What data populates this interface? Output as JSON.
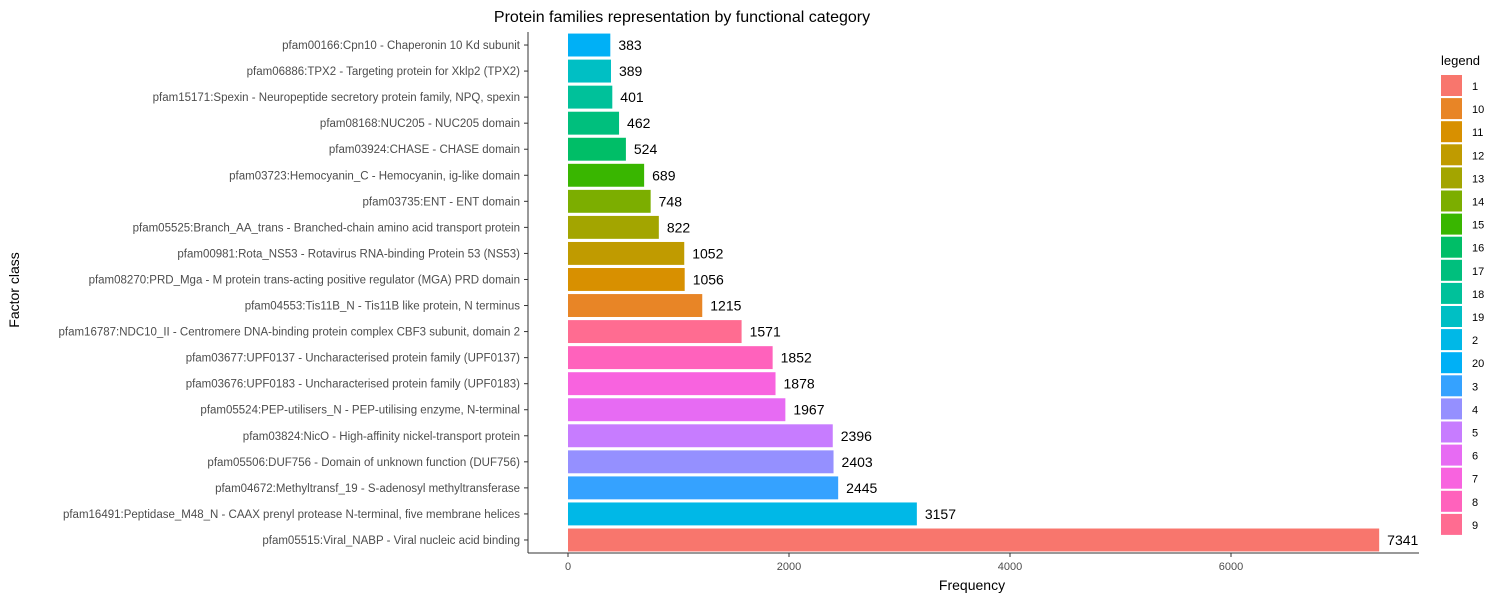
{
  "chart_data": {
    "type": "bar",
    "orientation": "horizontal",
    "title": "Protein families representation by functional category",
    "xlabel": "Frequency",
    "ylabel": "Factor class",
    "xlim": [
      0,
      7700
    ],
    "xticks": [
      0,
      2000,
      4000,
      6000
    ],
    "grid": false,
    "legend_position": "right",
    "legend_title": "legend",
    "bars": [
      {
        "label": "pfam00166:Cpn10 - Chaperonin 10 Kd subunit",
        "value": 383,
        "group": "20",
        "color": "#00B0F6"
      },
      {
        "label": "pfam06886:TPX2 - Targeting protein for Xklp2 (TPX2)",
        "value": 389,
        "group": "19",
        "color": "#00BFC4"
      },
      {
        "label": "pfam15171:Spexin - Neuropeptide secretory protein family, NPQ, spexin",
        "value": 401,
        "group": "18",
        "color": "#00C19A"
      },
      {
        "label": "pfam08168:NUC205 - NUC205 domain",
        "value": 462,
        "group": "17",
        "color": "#00BF7D"
      },
      {
        "label": "pfam03924:CHASE - CHASE domain",
        "value": 524,
        "group": "16",
        "color": "#00BE67"
      },
      {
        "label": "pfam03723:Hemocyanin_C - Hemocyanin, ig-like domain",
        "value": 689,
        "group": "15",
        "color": "#39B600"
      },
      {
        "label": "pfam03735:ENT - ENT domain",
        "value": 748,
        "group": "14",
        "color": "#7CAE00"
      },
      {
        "label": "pfam05525:Branch_AA_trans - Branched-chain amino acid transport protein",
        "value": 822,
        "group": "13",
        "color": "#A3A500"
      },
      {
        "label": "pfam00981:Rota_NS53 - Rotavirus RNA-binding Protein 53 (NS53)",
        "value": 1052,
        "group": "12",
        "color": "#C09B00"
      },
      {
        "label": "pfam08270:PRD_Mga - M protein trans-acting positive regulator (MGA) PRD domain",
        "value": 1056,
        "group": "11",
        "color": "#D89000"
      },
      {
        "label": "pfam04553:Tis11B_N - Tis11B like protein, N terminus",
        "value": 1215,
        "group": "10",
        "color": "#E88526"
      },
      {
        "label": "pfam16787:NDC10_II - Centromere DNA-binding protein complex CBF3 subunit, domain 2",
        "value": 1571,
        "group": "9",
        "color": "#FF6C91"
      },
      {
        "label": "pfam03677:UPF0137 - Uncharacterised protein family (UPF0137)",
        "value": 1852,
        "group": "8",
        "color": "#FF62BC"
      },
      {
        "label": "pfam03676:UPF0183 - Uncharacterised protein family (UPF0183)",
        "value": 1878,
        "group": "7",
        "color": "#F863DF"
      },
      {
        "label": "pfam05524:PEP-utilisers_N - PEP-utilising enzyme, N-terminal",
        "value": 1967,
        "group": "6",
        "color": "#E76BF3"
      },
      {
        "label": "pfam03824:NicO - High-affinity nickel-transport protein",
        "value": 2396,
        "group": "5",
        "color": "#C77CFF"
      },
      {
        "label": "pfam05506:DUF756 - Domain of unknown function (DUF756)",
        "value": 2403,
        "group": "4",
        "color": "#9590FF"
      },
      {
        "label": "pfam04672:Methyltransf_19 - S-adenosyl methyltransferase",
        "value": 2445,
        "group": "3",
        "color": "#35A2FF"
      },
      {
        "label": "pfam16491:Peptidase_M48_N - CAAX prenyl protease N-terminal, five membrane helices",
        "value": 3157,
        "group": "2",
        "color": "#00B8E7"
      },
      {
        "label": "pfam05515:Viral_NABP - Viral nucleic acid binding",
        "value": 7341,
        "group": "1",
        "color": "#F8766D"
      }
    ],
    "legend": [
      {
        "label": "1",
        "color": "#F8766D"
      },
      {
        "label": "10",
        "color": "#E88526"
      },
      {
        "label": "11",
        "color": "#D89000"
      },
      {
        "label": "12",
        "color": "#C09B00"
      },
      {
        "label": "13",
        "color": "#A3A500"
      },
      {
        "label": "14",
        "color": "#7CAE00"
      },
      {
        "label": "15",
        "color": "#39B600"
      },
      {
        "label": "16",
        "color": "#00BE67"
      },
      {
        "label": "17",
        "color": "#00BF7D"
      },
      {
        "label": "18",
        "color": "#00C19A"
      },
      {
        "label": "19",
        "color": "#00BFC4"
      },
      {
        "label": "2",
        "color": "#00B8E7"
      },
      {
        "label": "20",
        "color": "#00B0F6"
      },
      {
        "label": "3",
        "color": "#35A2FF"
      },
      {
        "label": "4",
        "color": "#9590FF"
      },
      {
        "label": "5",
        "color": "#C77CFF"
      },
      {
        "label": "6",
        "color": "#E76BF3"
      },
      {
        "label": "7",
        "color": "#F863DF"
      },
      {
        "label": "8",
        "color": "#FF62BC"
      },
      {
        "label": "9",
        "color": "#FF6C91"
      }
    ]
  }
}
